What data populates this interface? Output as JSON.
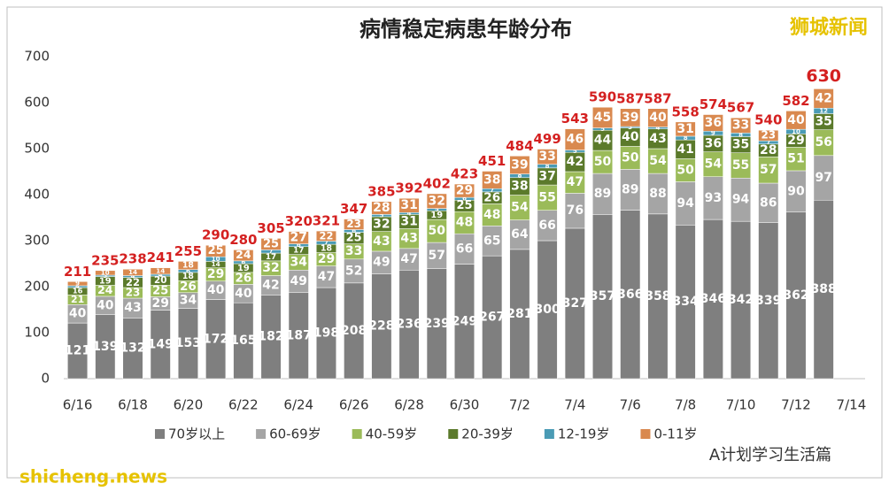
{
  "chart_data": {
    "type": "stacked-bar",
    "title": "病情稳定病患年龄分布",
    "categories": [
      "6/16",
      null,
      "6/18",
      null,
      "6/20",
      null,
      "6/22",
      null,
      "6/24",
      null,
      "6/26",
      null,
      "6/28",
      null,
      "6/30",
      null,
      "7/2",
      null,
      "7/4",
      null,
      "7/6",
      null,
      "7/8",
      null,
      "7/10",
      null,
      "7/12",
      null,
      "7/14"
    ],
    "series": [
      {
        "name": "70岁以上",
        "color": "#7f7f7f",
        "values": [
          121,
          139,
          132,
          149,
          153,
          172,
          165,
          182,
          187,
          198,
          208,
          228,
          236,
          239,
          249,
          267,
          281,
          300,
          327,
          357,
          366,
          358,
          334,
          346,
          342,
          339,
          362,
          388,
          null
        ]
      },
      {
        "name": "60-69岁",
        "color": "#a5a5a5",
        "values": [
          40,
          40,
          43,
          29,
          34,
          40,
          40,
          42,
          49,
          47,
          52,
          49,
          47,
          57,
          66,
          65,
          64,
          66,
          76,
          89,
          89,
          88,
          94,
          93,
          94,
          86,
          90,
          97,
          null
        ]
      },
      {
        "name": "40-59岁",
        "color": "#9bbb59",
        "values": [
          21,
          24,
          23,
          25,
          26,
          29,
          26,
          32,
          34,
          29,
          33,
          43,
          43,
          50,
          48,
          48,
          54,
          55,
          47,
          50,
          50,
          54,
          50,
          54,
          55,
          57,
          51,
          56,
          null
        ]
      },
      {
        "name": "20-39岁",
        "color": "#5b7a2b",
        "values": [
          16,
          19,
          22,
          20,
          18,
          14,
          19,
          17,
          17,
          18,
          25,
          32,
          31,
          19,
          25,
          26,
          38,
          37,
          42,
          44,
          40,
          43,
          41,
          36,
          35,
          28,
          29,
          35,
          null
        ]
      },
      {
        "name": "12-19岁",
        "color": "#4a9bb5",
        "values": [
          4,
          3,
          4,
          4,
          6,
          10,
          6,
          7,
          6,
          7,
          6,
          5,
          4,
          5,
          6,
          7,
          8,
          8,
          5,
          5,
          3,
          4,
          8,
          9,
          8,
          7,
          10,
          12,
          null
        ]
      },
      {
        "name": "0-11岁",
        "color": "#d9894f",
        "values": [
          9,
          10,
          14,
          14,
          18,
          25,
          24,
          25,
          27,
          22,
          23,
          28,
          31,
          32,
          29,
          38,
          39,
          33,
          46,
          45,
          39,
          40,
          31,
          36,
          33,
          23,
          40,
          42,
          null
        ]
      }
    ],
    "totals": [
      211,
      235,
      238,
      241,
      255,
      290,
      280,
      305,
      320,
      321,
      347,
      385,
      392,
      402,
      423,
      451,
      484,
      499,
      543,
      590,
      587,
      587,
      558,
      574,
      567,
      540,
      582,
      630,
      null
    ],
    "ylim": [
      0,
      700
    ],
    "yticks": [
      0,
      100,
      200,
      300,
      400,
      500,
      600,
      700
    ],
    "grid": false
  },
  "watermark": "狮城新闻",
  "source": "shicheng.news",
  "credit": "A计划学习生活篇"
}
